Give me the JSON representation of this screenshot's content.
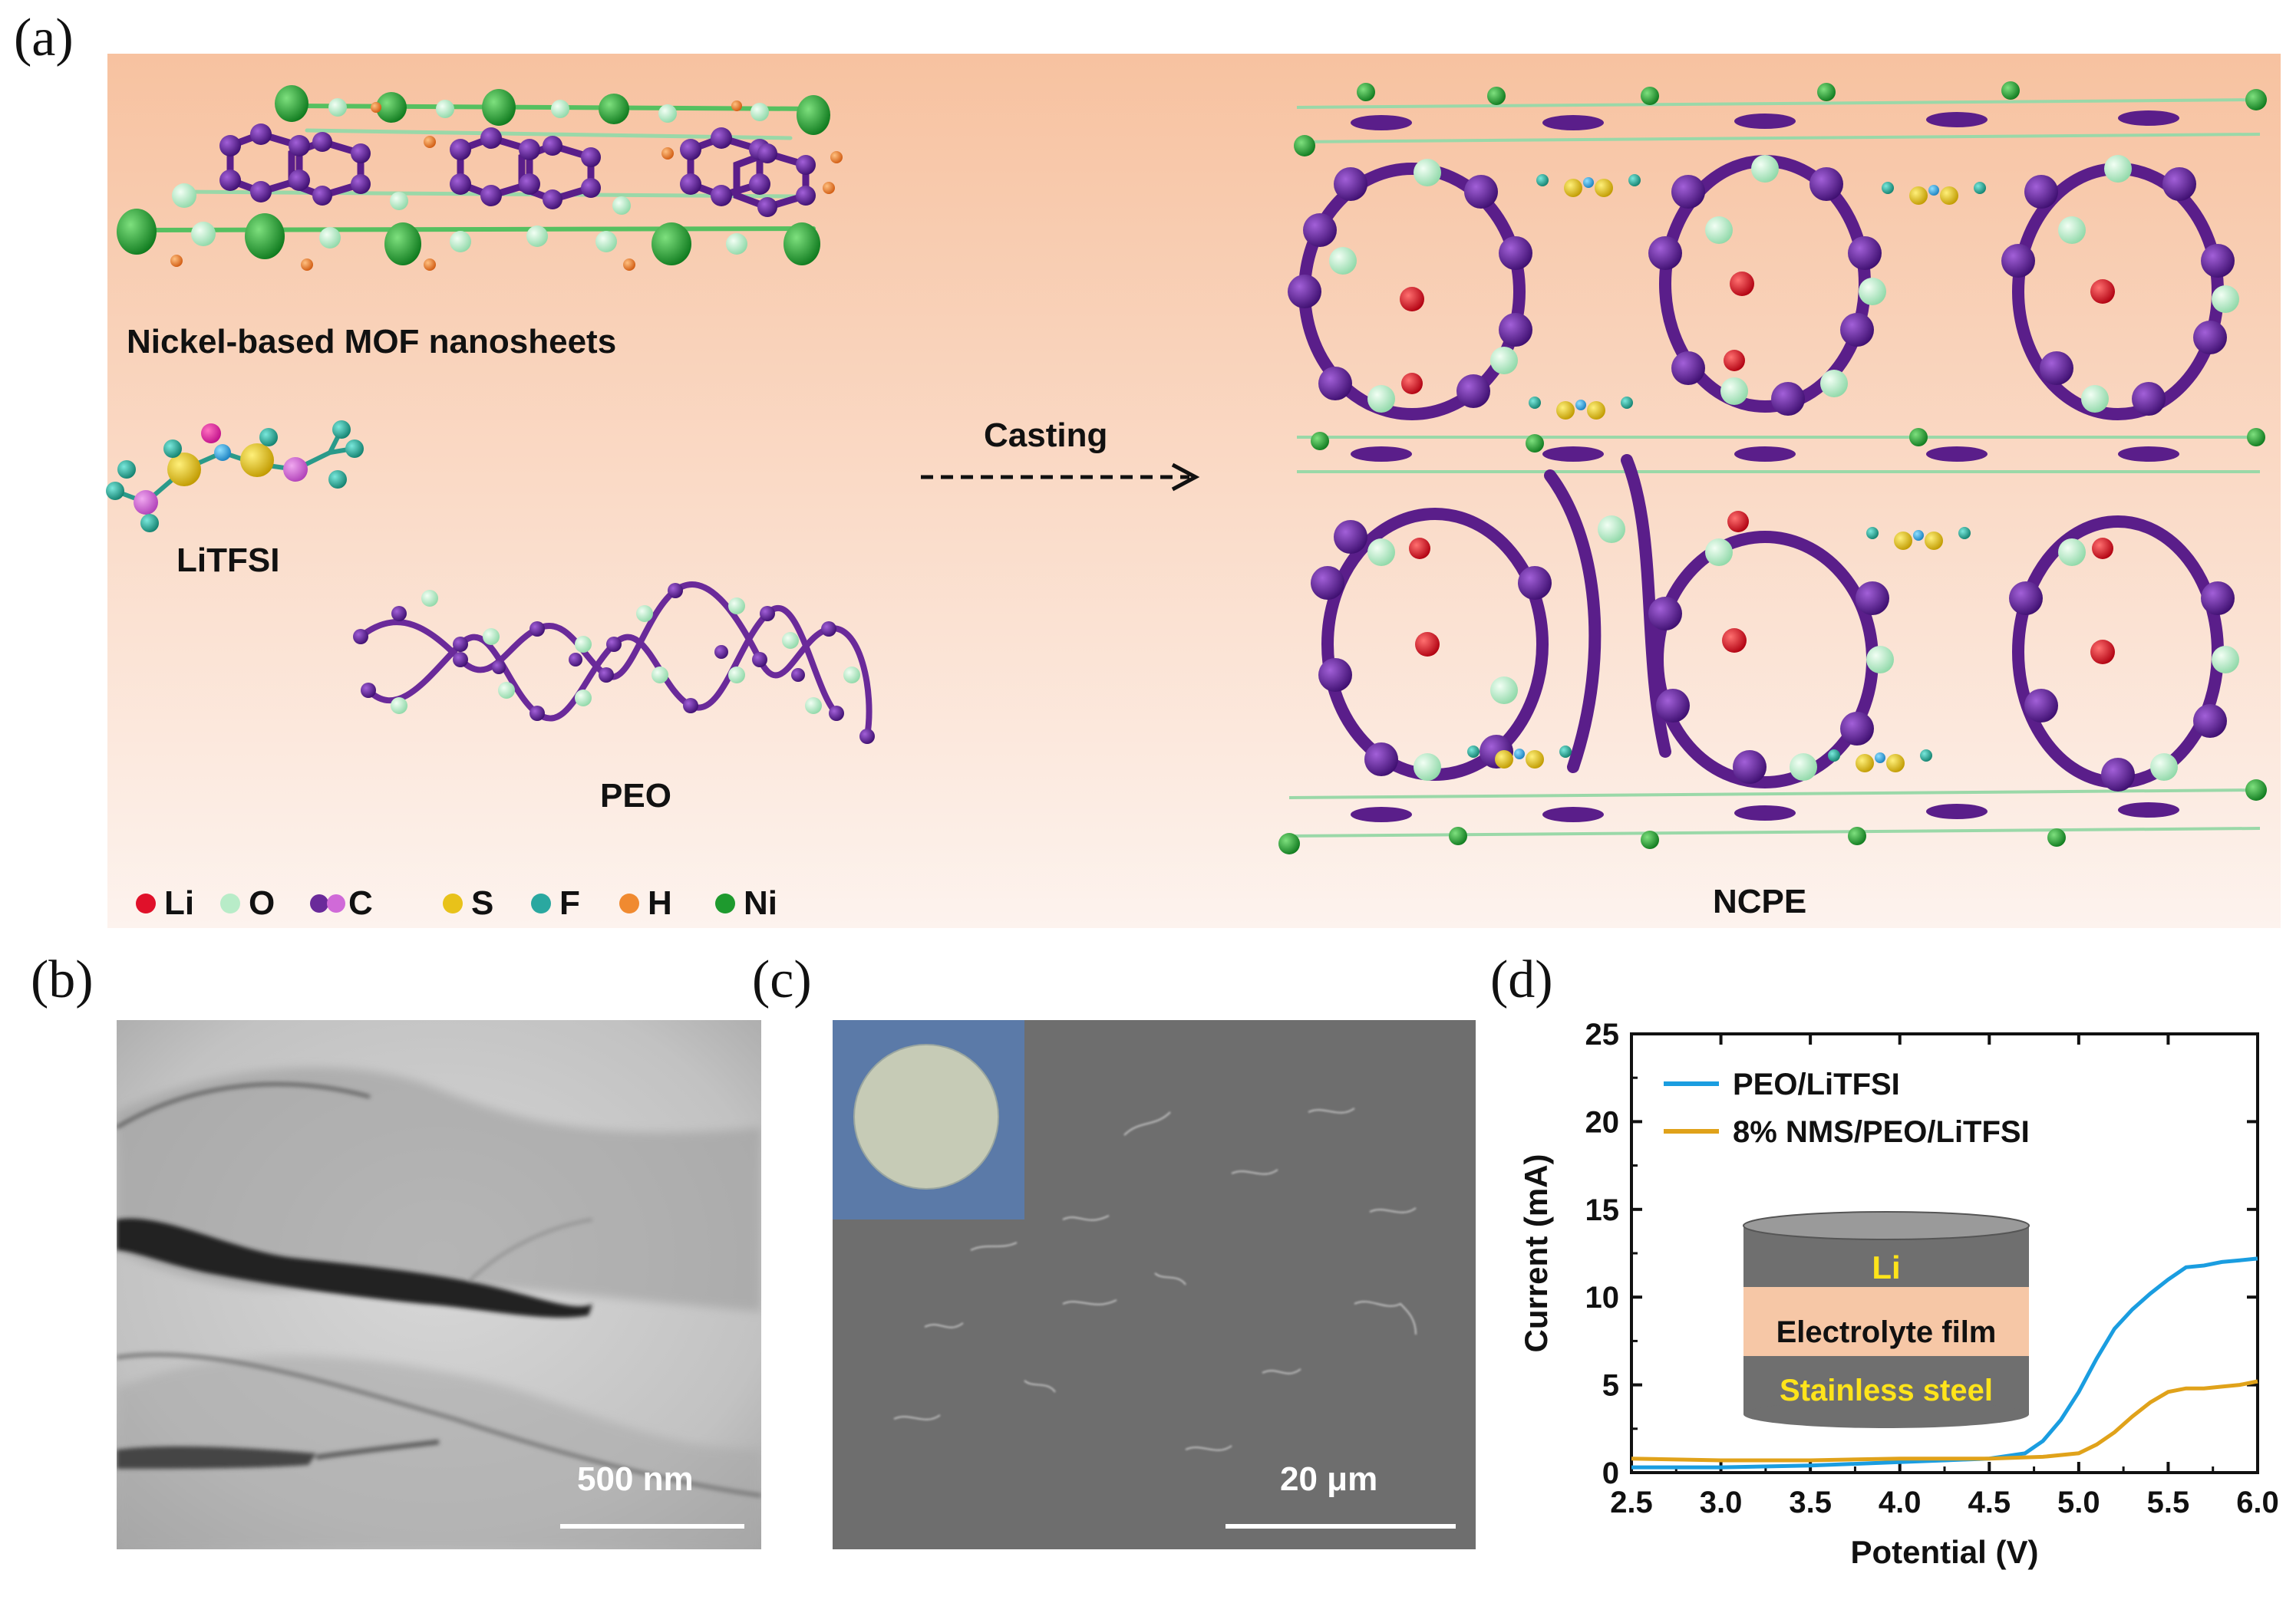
{
  "panel_a": {
    "letter": "(a)",
    "mof_label": "Nickel-based MOF nanosheets",
    "litfsi_label": "LiTFSI",
    "peo_label": "PEO",
    "arrow_label": "Casting",
    "ncpe_label": "NCPE",
    "legend": [
      {
        "symbol": "Li",
        "color": "#e0112a"
      },
      {
        "symbol": "O",
        "color": "#b8ecc8"
      },
      {
        "symbol": "C",
        "color": "#6a2a9a",
        "color2": "#d06ad8"
      },
      {
        "symbol": "S",
        "color": "#e8c21a"
      },
      {
        "symbol": "F",
        "color": "#2aa8a0"
      },
      {
        "symbol": "H",
        "color": "#f08a30"
      },
      {
        "symbol": "Ni",
        "color": "#1e9a2e"
      }
    ],
    "bg_top": "#f7c2a0",
    "bg_bottom": "#fdf3ee"
  },
  "panel_b": {
    "letter": "(b)",
    "scale_label": "500 nm"
  },
  "panel_c": {
    "letter": "(c)",
    "scale_label": "20 μm"
  },
  "panel_d": {
    "letter": "(d)",
    "inset": {
      "top": "Li",
      "middle": "Electrolyte film",
      "bottom": "Stainless steel"
    }
  },
  "chart_data": {
    "type": "line",
    "xlabel": "Potential (V)",
    "ylabel": "Current (mA)",
    "xlim": [
      2.5,
      6.0
    ],
    "ylim": [
      0,
      25
    ],
    "xticks": [
      "2.5",
      "3.0",
      "3.5",
      "4.0",
      "4.5",
      "5.0",
      "5.5",
      "6.0"
    ],
    "yticks": [
      "0",
      "5",
      "10",
      "15",
      "20",
      "25"
    ],
    "legend_position": "top-left",
    "series": [
      {
        "name": "PEO/LiTFSI",
        "color": "#1a9de0",
        "x": [
          2.5,
          3.0,
          3.5,
          4.0,
          4.5,
          4.7,
          4.8,
          4.9,
          5.0,
          5.1,
          5.2,
          5.3,
          5.4,
          5.5,
          5.6,
          5.7,
          5.8,
          5.9,
          6.0
        ],
        "y": [
          0.3,
          0.3,
          0.4,
          0.6,
          0.8,
          1.1,
          1.8,
          3.0,
          4.6,
          6.5,
          8.2,
          9.3,
          10.2,
          11.0,
          11.7,
          11.8,
          12.0,
          12.1,
          12.2
        ]
      },
      {
        "name": "8% NMS/PEO/LiTFSI",
        "color": "#e0a21a",
        "x": [
          2.5,
          3.0,
          3.5,
          4.0,
          4.5,
          4.8,
          5.0,
          5.1,
          5.2,
          5.3,
          5.4,
          5.5,
          5.6,
          5.7,
          5.8,
          5.9,
          6.0
        ],
        "y": [
          0.8,
          0.7,
          0.7,
          0.8,
          0.8,
          0.9,
          1.1,
          1.6,
          2.3,
          3.2,
          4.0,
          4.6,
          4.8,
          4.8,
          4.9,
          5.0,
          5.2
        ]
      }
    ]
  }
}
